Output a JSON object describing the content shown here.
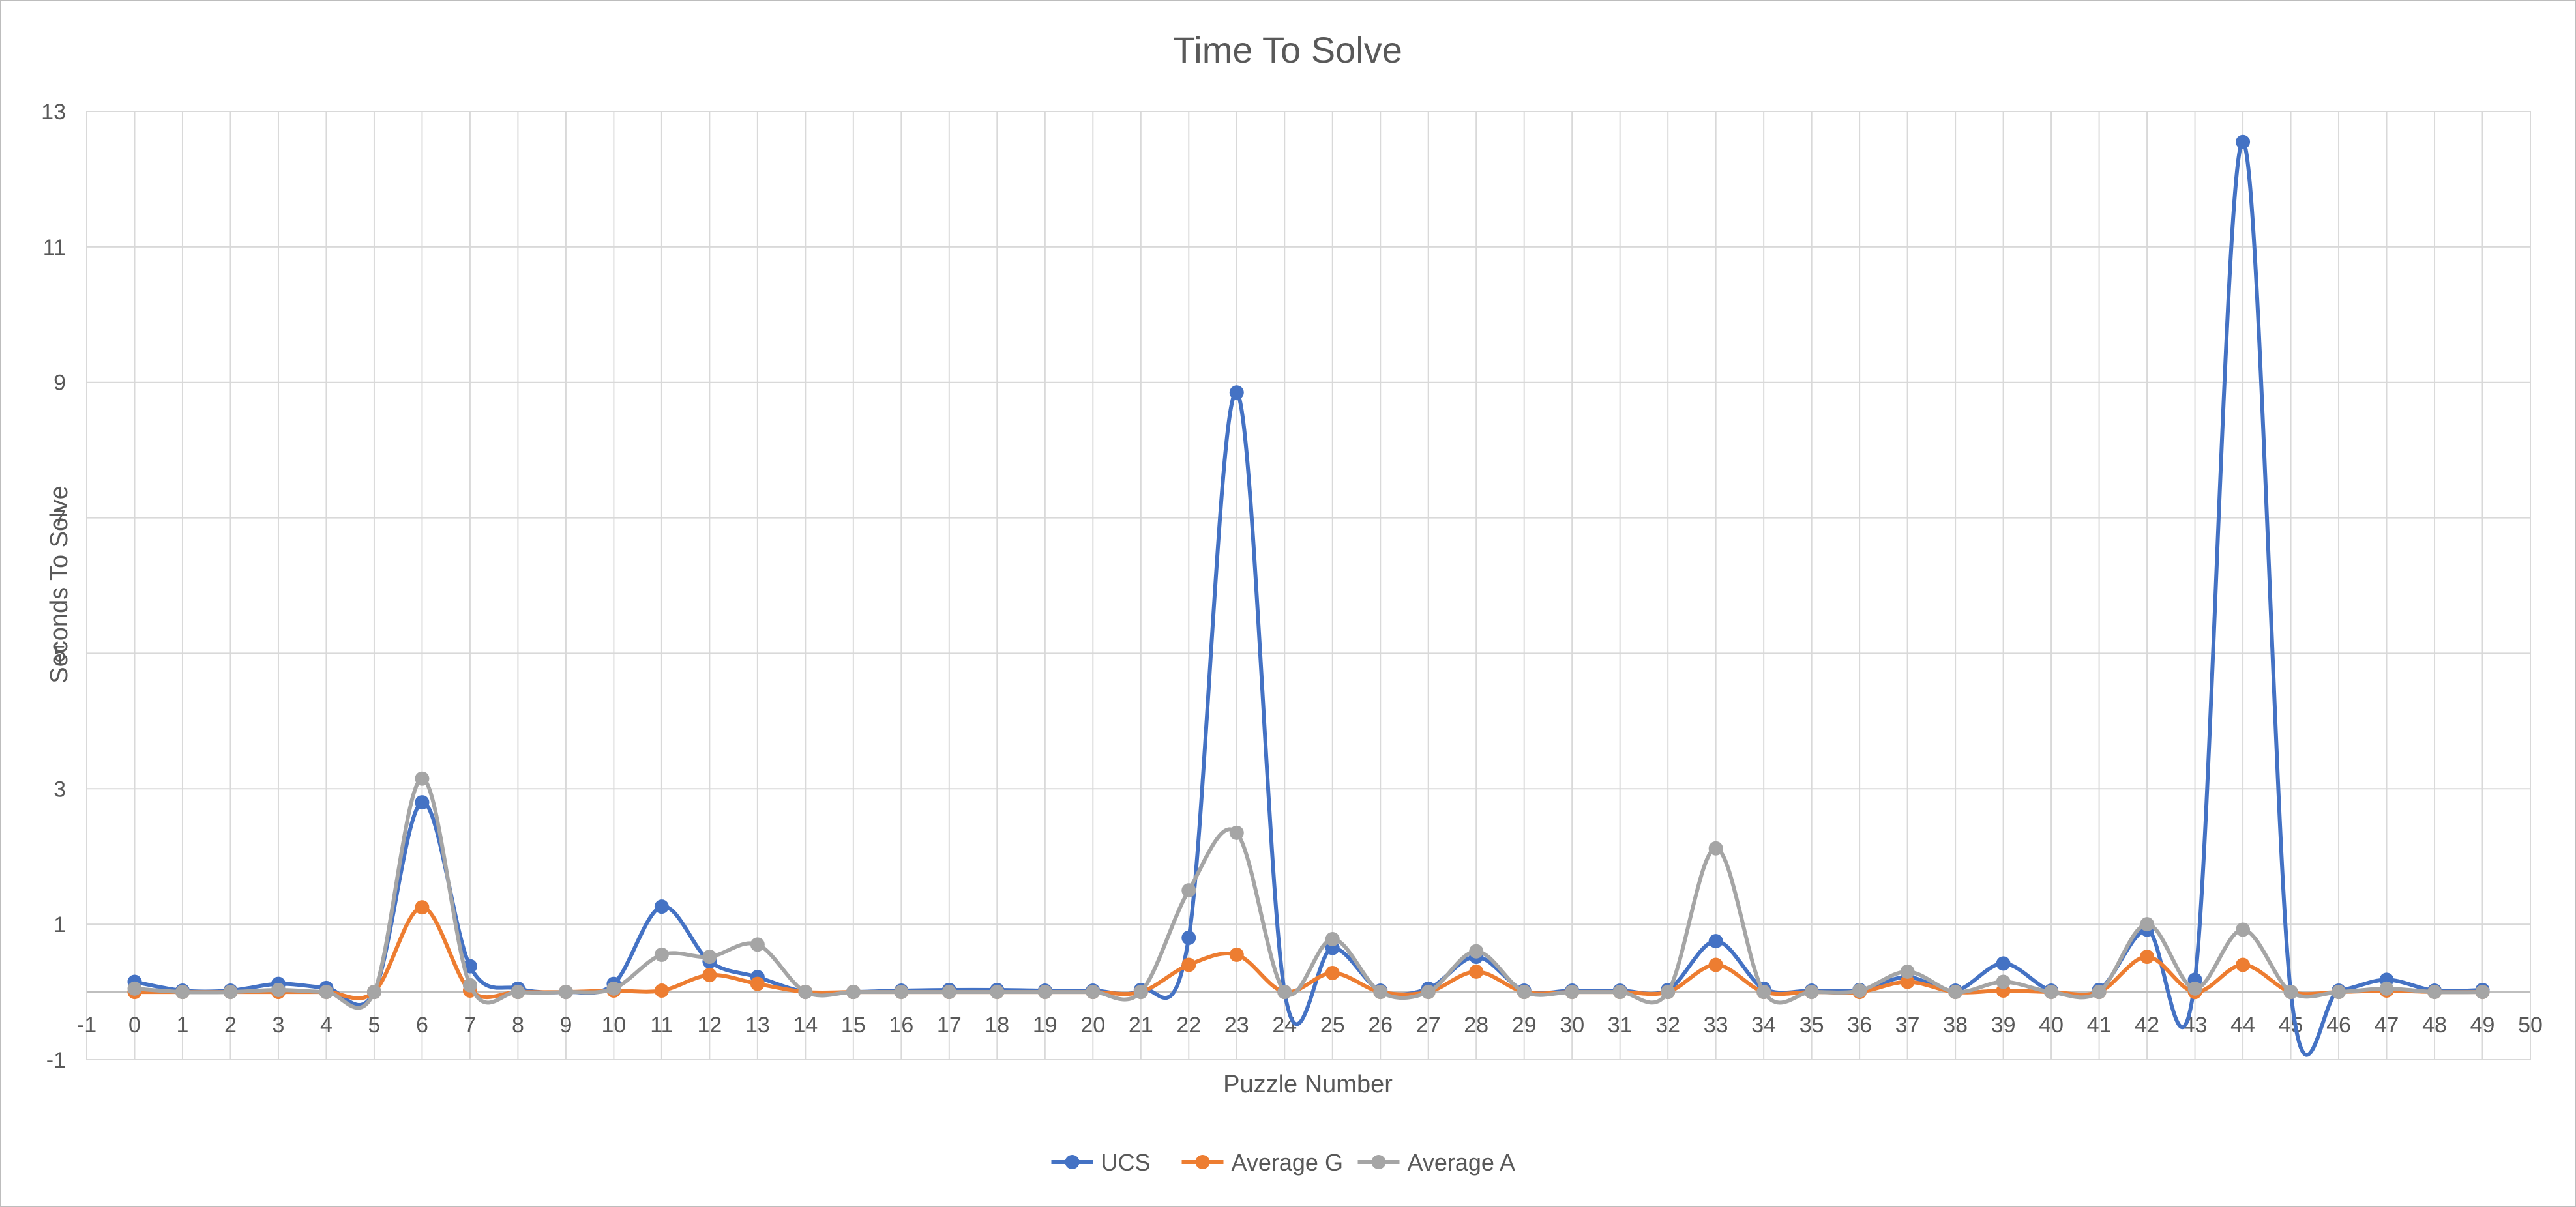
{
  "chart_data": {
    "type": "line",
    "title": "Time To Solve",
    "xlabel": "Puzzle Number",
    "ylabel": "Seconds To Solve",
    "xlim": [
      -1,
      50
    ],
    "ylim": [
      -1,
      13
    ],
    "x_ticks": [
      -1,
      0,
      1,
      2,
      3,
      4,
      5,
      6,
      7,
      8,
      9,
      10,
      11,
      12,
      13,
      14,
      15,
      16,
      17,
      18,
      19,
      20,
      21,
      22,
      23,
      24,
      25,
      26,
      27,
      28,
      29,
      30,
      31,
      32,
      33,
      34,
      35,
      36,
      37,
      38,
      39,
      40,
      41,
      42,
      43,
      44,
      45,
      46,
      47,
      48,
      49,
      50
    ],
    "y_ticks": [
      -1,
      1,
      3,
      5,
      7,
      9,
      11,
      13
    ],
    "grid": true,
    "smooth": true,
    "legend_position": "bottom",
    "x": [
      0,
      1,
      2,
      3,
      4,
      5,
      6,
      7,
      8,
      9,
      10,
      11,
      12,
      13,
      14,
      15,
      16,
      17,
      18,
      19,
      20,
      21,
      22,
      23,
      24,
      25,
      26,
      27,
      28,
      29,
      30,
      31,
      32,
      33,
      34,
      35,
      36,
      37,
      38,
      39,
      40,
      41,
      42,
      43,
      44,
      45,
      46,
      47,
      48,
      49
    ],
    "series": [
      {
        "name": "UCS",
        "color": "#4472C4",
        "values": [
          0.15,
          0.02,
          0.02,
          0.12,
          0.06,
          0.0,
          2.8,
          0.38,
          0.05,
          0.0,
          0.12,
          1.26,
          0.45,
          0.22,
          0.0,
          0.0,
          0.02,
          0.03,
          0.03,
          0.02,
          0.02,
          0.03,
          0.8,
          8.85,
          0.0,
          0.65,
          0.02,
          0.05,
          0.52,
          0.02,
          0.02,
          0.02,
          0.03,
          0.75,
          0.05,
          0.02,
          0.03,
          0.22,
          0.02,
          0.42,
          0.02,
          0.03,
          0.92,
          0.18,
          12.55,
          0.0,
          0.02,
          0.18,
          0.02,
          0.03
        ]
      },
      {
        "name": "Average G",
        "color": "#ED7D31",
        "values": [
          0.0,
          0.0,
          0.0,
          0.0,
          0.0,
          0.0,
          1.25,
          0.02,
          0.0,
          0.0,
          0.02,
          0.02,
          0.25,
          0.12,
          0.0,
          0.0,
          0.0,
          0.0,
          0.0,
          0.0,
          0.0,
          0.0,
          0.4,
          0.55,
          0.0,
          0.28,
          0.0,
          0.0,
          0.3,
          0.0,
          0.0,
          0.0,
          0.0,
          0.4,
          0.0,
          0.0,
          0.0,
          0.15,
          0.0,
          0.02,
          0.0,
          0.0,
          0.52,
          0.0,
          0.4,
          0.0,
          0.0,
          0.02,
          0.0,
          0.0
        ]
      },
      {
        "name": "Average A",
        "color": "#A5A5A5",
        "values": [
          0.05,
          0.0,
          0.0,
          0.03,
          0.0,
          0.0,
          3.15,
          0.1,
          0.0,
          0.0,
          0.05,
          0.55,
          0.52,
          0.7,
          0.0,
          0.0,
          0.0,
          0.0,
          0.0,
          0.0,
          0.0,
          0.0,
          1.5,
          2.35,
          0.0,
          0.78,
          0.0,
          0.0,
          0.6,
          0.0,
          0.0,
          0.0,
          0.0,
          2.12,
          0.0,
          0.0,
          0.02,
          0.3,
          0.0,
          0.15,
          0.0,
          0.0,
          1.0,
          0.05,
          0.92,
          0.0,
          0.0,
          0.05,
          0.0,
          0.0
        ]
      }
    ]
  }
}
